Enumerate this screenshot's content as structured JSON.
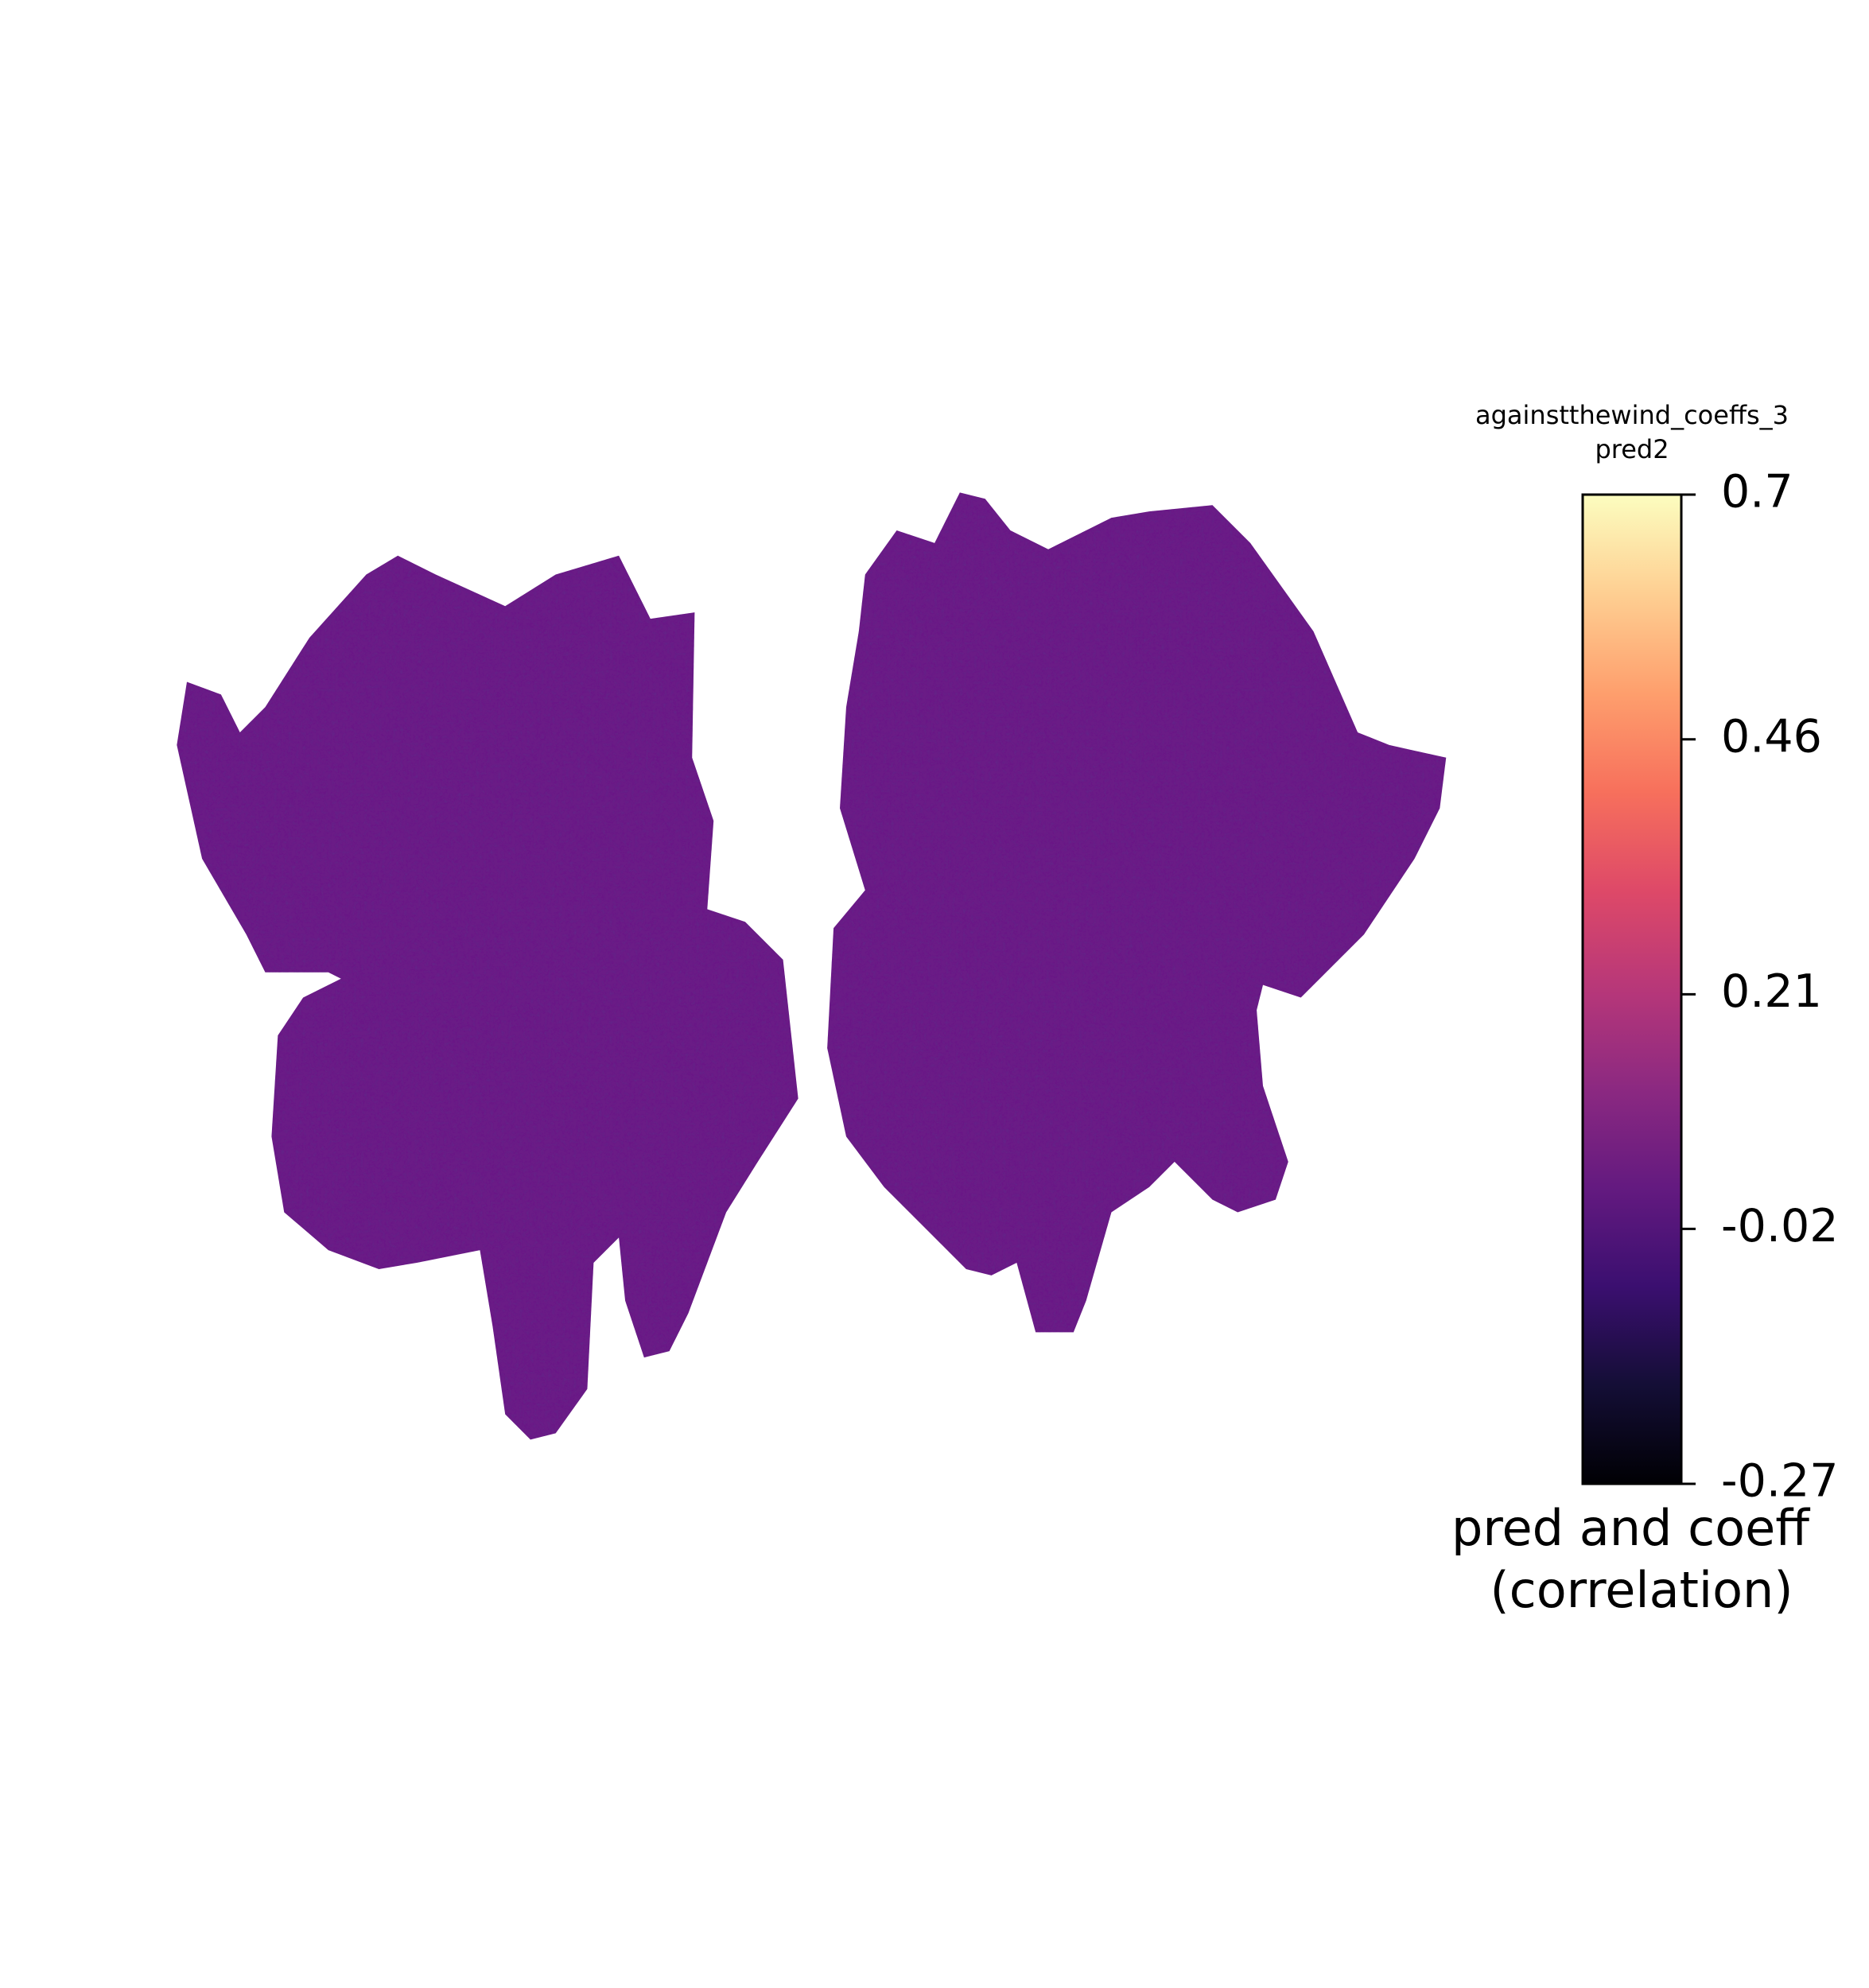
{
  "chart_data": {
    "type": "flatmap",
    "title": "againstthewind_coeffs_3",
    "subtitle": "pred2",
    "colormap": "magma",
    "clim": [
      -0.27,
      0.7
    ],
    "cticks": [
      0.7,
      0.46,
      0.21,
      -0.02,
      -0.27
    ],
    "colorbar_label": [
      "pred and coeff",
      "(correlation)"
    ]
  }
}
